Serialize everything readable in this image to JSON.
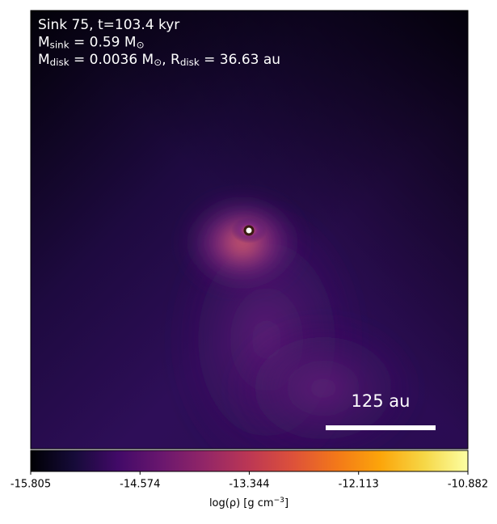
{
  "chart_data": {
    "type": "image",
    "annotation_lines": [
      [
        {
          "t": "Sink 75, t=103.4 kyr"
        }
      ],
      [
        {
          "t": "M"
        },
        {
          "t": "sink",
          "sub": true
        },
        {
          "t": " = 0.59 M"
        },
        {
          "t": "⊙",
          "sub": true
        }
      ],
      [
        {
          "t": "M"
        },
        {
          "t": "disk",
          "sub": true
        },
        {
          "t": " = 0.0036 M"
        },
        {
          "t": "⊙",
          "sub": true
        },
        {
          "t": ", R"
        },
        {
          "t": "disk",
          "sub": true
        },
        {
          "t": " = 36.63 au"
        }
      ]
    ],
    "scale_bar_label": "125 au",
    "colorbar": {
      "label": [
        {
          "t": "log(ρ) [g cm"
        },
        {
          "t": "−3",
          "sup": true
        },
        {
          "t": "]"
        }
      ],
      "clim": [
        -15.805,
        -10.882
      ],
      "ticks": [
        -15.805,
        -14.574,
        -13.344,
        -12.113,
        -10.882
      ],
      "colormap": [
        "#000004",
        "#160b39",
        "#420a68",
        "#6a176e",
        "#932667",
        "#bc3754",
        "#dd513a",
        "#f37819",
        "#fca50a",
        "#f6d746",
        "#fcffa4"
      ]
    }
  }
}
